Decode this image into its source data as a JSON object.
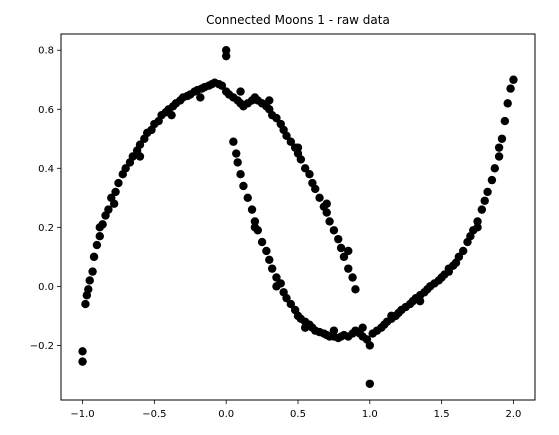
{
  "chart_data": {
    "type": "scatter",
    "title": "Connected Moons  1 - raw data",
    "xlabel": "",
    "ylabel": "",
    "xlim": [
      -1.15,
      2.15
    ],
    "ylim": [
      -0.385,
      0.855
    ],
    "xticks": [
      -1.0,
      -0.5,
      0.0,
      0.5,
      1.0,
      1.5,
      2.0
    ],
    "xtick_labels": [
      "−1.0",
      "−0.5",
      "0.0",
      "0.5",
      "1.0",
      "1.5",
      "2.0"
    ],
    "yticks": [
      -0.2,
      0.0,
      0.2,
      0.4,
      0.6,
      0.8
    ],
    "ytick_labels": [
      "−0.2",
      "0.0",
      "0.2",
      "0.4",
      "0.6",
      "0.8"
    ],
    "grid": false,
    "marker_color": "#000000",
    "series": [
      {
        "points": [
          [
            -1.0,
            -0.22
          ],
          [
            -1.0,
            -0.255
          ],
          [
            -0.98,
            -0.06
          ],
          [
            -0.97,
            -0.03
          ],
          [
            -0.96,
            -0.01
          ],
          [
            -0.95,
            0.02
          ],
          [
            -0.93,
            0.05
          ],
          [
            -0.92,
            0.1
          ],
          [
            -0.9,
            0.14
          ],
          [
            -0.88,
            0.17
          ],
          [
            -0.86,
            0.21
          ],
          [
            -0.84,
            0.24
          ],
          [
            -0.82,
            0.26
          ],
          [
            -0.8,
            0.3
          ],
          [
            -0.77,
            0.32
          ],
          [
            -0.75,
            0.35
          ],
          [
            -0.72,
            0.38
          ],
          [
            -0.7,
            0.4
          ],
          [
            -0.67,
            0.42
          ],
          [
            -0.65,
            0.44
          ],
          [
            -0.62,
            0.46
          ],
          [
            -0.6,
            0.48
          ],
          [
            -0.57,
            0.5
          ],
          [
            -0.55,
            0.52
          ],
          [
            -0.52,
            0.53
          ],
          [
            -0.5,
            0.55
          ],
          [
            -0.47,
            0.56
          ],
          [
            -0.45,
            0.58
          ],
          [
            -0.42,
            0.59
          ],
          [
            -0.4,
            0.6
          ],
          [
            -0.37,
            0.61
          ],
          [
            -0.35,
            0.62
          ],
          [
            -0.32,
            0.63
          ],
          [
            -0.3,
            0.64
          ],
          [
            -0.27,
            0.645
          ],
          [
            -0.25,
            0.65
          ],
          [
            -0.22,
            0.66
          ],
          [
            -0.2,
            0.665
          ],
          [
            -0.17,
            0.67
          ],
          [
            -0.15,
            0.675
          ],
          [
            -0.12,
            0.68
          ],
          [
            -0.1,
            0.685
          ],
          [
            -0.08,
            0.69
          ],
          [
            -0.05,
            0.685
          ],
          [
            -0.03,
            0.68
          ],
          [
            0.0,
            0.8
          ],
          [
            0.0,
            0.78
          ],
          [
            0.0,
            0.66
          ],
          [
            0.02,
            0.65
          ],
          [
            0.05,
            0.64
          ],
          [
            0.08,
            0.63
          ],
          [
            0.1,
            0.62
          ],
          [
            0.12,
            0.61
          ],
          [
            0.15,
            0.62
          ],
          [
            0.18,
            0.63
          ],
          [
            0.2,
            0.64
          ],
          [
            0.22,
            0.63
          ],
          [
            0.25,
            0.62
          ],
          [
            0.28,
            0.61
          ],
          [
            0.3,
            0.6
          ],
          [
            0.32,
            0.58
          ],
          [
            0.35,
            0.57
          ],
          [
            0.38,
            0.55
          ],
          [
            0.4,
            0.53
          ],
          [
            0.42,
            0.51
          ],
          [
            0.45,
            0.49
          ],
          [
            0.48,
            0.47
          ],
          [
            0.5,
            0.45
          ],
          [
            0.52,
            0.43
          ],
          [
            0.55,
            0.4
          ],
          [
            0.58,
            0.38
          ],
          [
            0.6,
            0.35
          ],
          [
            0.62,
            0.33
          ],
          [
            0.65,
            0.3
          ],
          [
            0.68,
            0.27
          ],
          [
            0.7,
            0.25
          ],
          [
            0.72,
            0.22
          ],
          [
            0.75,
            0.19
          ],
          [
            0.78,
            0.16
          ],
          [
            0.8,
            0.13
          ],
          [
            0.82,
            0.1
          ],
          [
            0.85,
            0.06
          ],
          [
            0.88,
            0.03
          ],
          [
            0.9,
            -0.01
          ],
          [
            -0.88,
            0.2
          ],
          [
            -0.78,
            0.28
          ],
          [
            -0.6,
            0.44
          ],
          [
            -0.38,
            0.58
          ],
          [
            -0.18,
            0.64
          ],
          [
            0.1,
            0.66
          ],
          [
            0.3,
            0.63
          ],
          [
            0.5,
            0.47
          ],
          [
            0.7,
            0.28
          ],
          [
            0.85,
            0.12
          ],
          [
            0.05,
            0.49
          ],
          [
            0.07,
            0.45
          ],
          [
            0.08,
            0.42
          ],
          [
            0.1,
            0.38
          ],
          [
            0.12,
            0.34
          ],
          [
            0.15,
            0.3
          ],
          [
            0.18,
            0.26
          ],
          [
            0.2,
            0.22
          ],
          [
            0.22,
            0.19
          ],
          [
            0.25,
            0.15
          ],
          [
            0.28,
            0.12
          ],
          [
            0.3,
            0.09
          ],
          [
            0.32,
            0.06
          ],
          [
            0.35,
            0.03
          ],
          [
            0.38,
            0.01
          ],
          [
            0.4,
            -0.02
          ],
          [
            0.42,
            -0.04
          ],
          [
            0.45,
            -0.06
          ],
          [
            0.48,
            -0.08
          ],
          [
            0.5,
            -0.1
          ],
          [
            0.52,
            -0.11
          ],
          [
            0.55,
            -0.12
          ],
          [
            0.58,
            -0.13
          ],
          [
            0.6,
            -0.14
          ],
          [
            0.62,
            -0.15
          ],
          [
            0.65,
            -0.155
          ],
          [
            0.68,
            -0.16
          ],
          [
            0.7,
            -0.165
          ],
          [
            0.72,
            -0.17
          ],
          [
            0.75,
            -0.17
          ],
          [
            0.78,
            -0.175
          ],
          [
            0.8,
            -0.17
          ],
          [
            0.82,
            -0.165
          ],
          [
            0.85,
            -0.17
          ],
          [
            0.88,
            -0.16
          ],
          [
            0.9,
            -0.15
          ],
          [
            0.93,
            -0.16
          ],
          [
            0.95,
            -0.17
          ],
          [
            0.98,
            -0.18
          ],
          [
            1.0,
            -0.33
          ],
          [
            1.0,
            -0.2
          ],
          [
            1.02,
            -0.16
          ],
          [
            1.05,
            -0.15
          ],
          [
            1.08,
            -0.14
          ],
          [
            1.1,
            -0.13
          ],
          [
            1.12,
            -0.12
          ],
          [
            1.15,
            -0.11
          ],
          [
            1.18,
            -0.1
          ],
          [
            1.2,
            -0.09
          ],
          [
            1.22,
            -0.08
          ],
          [
            1.25,
            -0.07
          ],
          [
            1.28,
            -0.06
          ],
          [
            1.3,
            -0.05
          ],
          [
            1.32,
            -0.04
          ],
          [
            1.35,
            -0.03
          ],
          [
            1.38,
            -0.02
          ],
          [
            1.4,
            -0.01
          ],
          [
            1.42,
            0.0
          ],
          [
            1.45,
            0.01
          ],
          [
            1.48,
            0.02
          ],
          [
            1.5,
            0.03
          ],
          [
            1.52,
            0.04
          ],
          [
            1.55,
            0.05
          ],
          [
            1.58,
            0.07
          ],
          [
            1.6,
            0.08
          ],
          [
            1.62,
            0.1
          ],
          [
            1.65,
            0.12
          ],
          [
            1.68,
            0.15
          ],
          [
            1.7,
            0.17
          ],
          [
            1.72,
            0.19
          ],
          [
            1.75,
            0.22
          ],
          [
            1.78,
            0.26
          ],
          [
            1.8,
            0.29
          ],
          [
            1.82,
            0.32
          ],
          [
            1.85,
            0.36
          ],
          [
            1.87,
            0.4
          ],
          [
            1.9,
            0.44
          ],
          [
            1.92,
            0.5
          ],
          [
            1.94,
            0.56
          ],
          [
            1.96,
            0.62
          ],
          [
            1.98,
            0.67
          ],
          [
            2.0,
            0.7
          ],
          [
            0.2,
            0.2
          ],
          [
            0.35,
            0.0
          ],
          [
            0.55,
            -0.14
          ],
          [
            0.75,
            -0.15
          ],
          [
            0.95,
            -0.14
          ],
          [
            1.15,
            -0.1
          ],
          [
            1.35,
            -0.05
          ],
          [
            1.55,
            0.06
          ],
          [
            1.75,
            0.2
          ],
          [
            1.9,
            0.47
          ]
        ]
      }
    ]
  }
}
